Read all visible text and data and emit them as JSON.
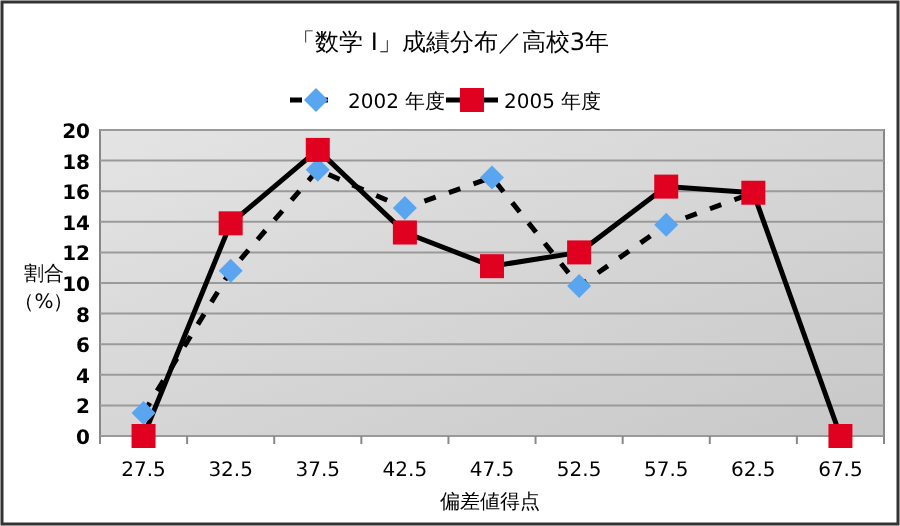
{
  "chart_data": {
    "type": "line",
    "title": "「数学 I」成績分布／高校3年",
    "xlabel": "偏差値得点",
    "ylabel": "割合（%）",
    "categories": [
      "27.5",
      "32.5",
      "37.5",
      "42.5",
      "47.5",
      "52.5",
      "57.5",
      "62.5",
      "67.5"
    ],
    "series": [
      {
        "name": "2002 年度",
        "color": "#5aa5f0",
        "marker": "diamond",
        "line_style": "dashed",
        "values": [
          1.5,
          10.8,
          17.4,
          14.9,
          16.9,
          9.8,
          13.8,
          15.9,
          null
        ]
      },
      {
        "name": "2005 年度",
        "color": "#e00020",
        "marker": "square",
        "line_style": "solid",
        "values": [
          0,
          13.9,
          18.7,
          13.3,
          11.1,
          12.0,
          16.3,
          15.9,
          0
        ]
      }
    ],
    "ylim": [
      0,
      20
    ],
    "yticks": [
      0,
      2,
      4,
      6,
      8,
      10,
      12,
      14,
      16,
      18,
      20
    ],
    "grid": "y",
    "legend": "top"
  }
}
